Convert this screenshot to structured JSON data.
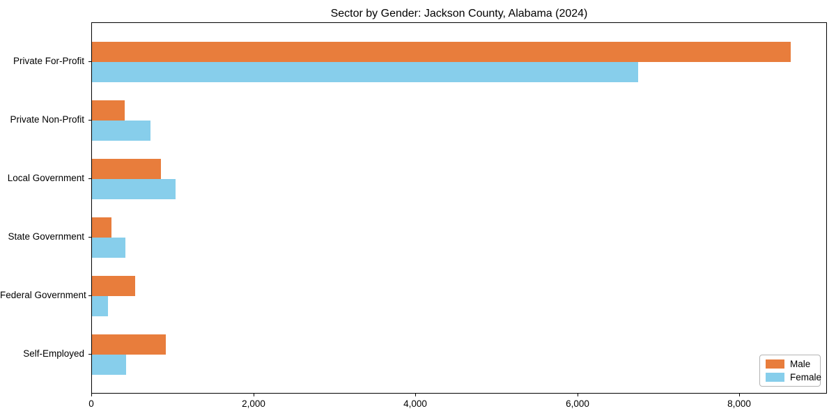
{
  "title": "Sector by Gender: Jackson County, Alabama (2024)",
  "colors": {
    "male": "#e87d3c",
    "female": "#87ceeb",
    "axis": "#000000",
    "text": "#000000",
    "legend_border": "#b3b3b3",
    "background": "#ffffff"
  },
  "chart_data": {
    "type": "bar",
    "orientation": "horizontal",
    "title": "Sector by Gender: Jackson County, Alabama (2024)",
    "categories": [
      "Private For-Profit",
      "Private Non-Profit",
      "Local Government",
      "State Government",
      "Federal Government",
      "Self-Employed"
    ],
    "series": [
      {
        "name": "Male",
        "color": "#e87d3c",
        "values": [
          8630,
          400,
          850,
          240,
          530,
          910
        ]
      },
      {
        "name": "Female",
        "color": "#87ceeb",
        "values": [
          6740,
          720,
          1030,
          410,
          200,
          420
        ]
      }
    ],
    "xlabel": "",
    "ylabel": "",
    "xlim": [
      0,
      9065
    ],
    "xticks": [
      0,
      2000,
      4000,
      6000,
      8000
    ],
    "xtick_labels": [
      "0",
      "2,000",
      "4,000",
      "6,000",
      "8,000"
    ],
    "grid": false,
    "legend": {
      "position": "lower right",
      "entries": [
        "Male",
        "Female"
      ]
    }
  }
}
